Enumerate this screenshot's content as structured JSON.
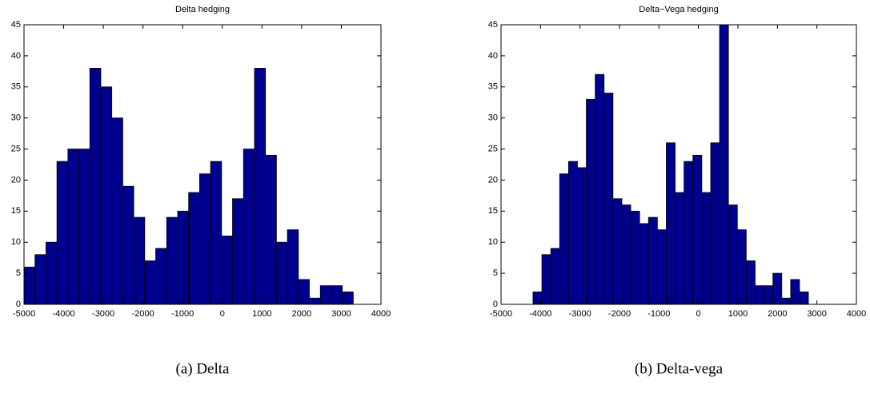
{
  "chart_data": [
    {
      "type": "histogram",
      "title": "Delta hedging",
      "caption": "(a) Delta",
      "color": "#00008f",
      "bins": [
        -5000,
        -4723.3,
        -4446.6,
        -4169.9,
        -3893.2,
        -3616.5,
        -3339.8,
        -3063.1,
        -2786.4,
        -2509.7,
        -2233,
        -1956.3,
        -1679.6,
        -1402.9,
        -1126.2,
        -849.5,
        -572.8,
        -296.1,
        -19.4,
        257.3,
        534,
        810.7,
        1087.4,
        1364.1,
        1640.8,
        1917.5,
        2194.2,
        2470.9,
        2747.6,
        3024.3,
        3301
      ],
      "values": [
        6,
        8,
        10,
        23,
        25,
        25,
        38,
        35,
        30,
        19,
        14,
        7,
        9,
        14,
        15,
        18,
        21,
        23,
        11,
        17,
        25,
        38,
        24,
        10,
        12,
        4,
        1,
        3,
        3,
        2
      ],
      "xlim": [
        -5000,
        4000
      ],
      "xticks": [
        -5000,
        -4000,
        -3000,
        -2000,
        -1000,
        0,
        1000,
        2000,
        3000,
        4000
      ],
      "ylim": [
        0,
        45
      ],
      "yticks": [
        0,
        5,
        10,
        15,
        20,
        25,
        30,
        35,
        40,
        45
      ]
    },
    {
      "type": "histogram",
      "title": "Delta−Vega hedging",
      "caption": "(b) Delta-vega",
      "color": "#00008f",
      "bins": [
        -4190,
        -3965,
        -3740,
        -3515,
        -3290,
        -3065,
        -2840,
        -2615,
        -2390,
        -2165,
        -1940,
        -1715,
        -1490,
        -1265,
        -1040,
        -815,
        -590,
        -365,
        -140,
        85,
        310,
        535,
        760,
        985,
        1210,
        1435,
        1660,
        1885,
        2110,
        2335,
        2560,
        2785
      ],
      "values": [
        2,
        8,
        9,
        21,
        23,
        22,
        33,
        37,
        34,
        17,
        16,
        15,
        13,
        14,
        12,
        26,
        18,
        23,
        24,
        18,
        26,
        45,
        16,
        12,
        7,
        3,
        3,
        5,
        1,
        4,
        2
      ],
      "xlim": [
        -5000,
        4000
      ],
      "xticks": [
        -5000,
        -4000,
        -3000,
        -2000,
        -1000,
        0,
        1000,
        2000,
        3000,
        4000
      ],
      "ylim": [
        0,
        45
      ],
      "yticks": [
        0,
        5,
        10,
        15,
        20,
        25,
        30,
        35,
        40,
        45
      ]
    }
  ]
}
